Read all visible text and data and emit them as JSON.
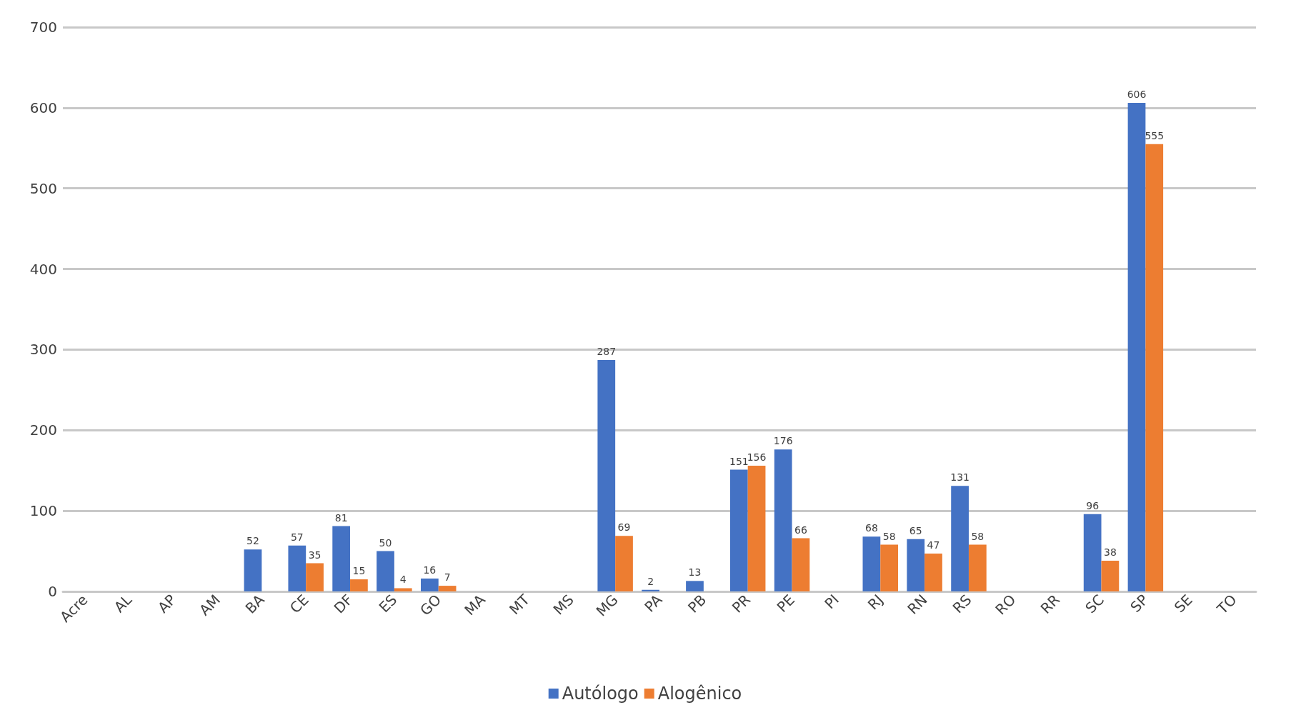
{
  "chart_data": {
    "type": "bar",
    "categories": [
      "Acre",
      "AL",
      "AP",
      "AM",
      "BA",
      "CE",
      "DF",
      "ES",
      "GO",
      "MA",
      "MT",
      "MS",
      "MG",
      "PA",
      "PB",
      "PR",
      "PE",
      "PI",
      "RJ",
      "RN",
      "RS",
      "RO",
      "RR",
      "SC",
      "SP",
      "SE",
      "TO"
    ],
    "series": [
      {
        "name": "Autólogo",
        "color": "#4472c4",
        "values": [
          null,
          null,
          null,
          null,
          52,
          57,
          81,
          50,
          16,
          null,
          null,
          null,
          287,
          2,
          13,
          151,
          176,
          null,
          68,
          65,
          131,
          null,
          null,
          96,
          606,
          null,
          null
        ]
      },
      {
        "name": "Alogênico",
        "color": "#ed7d31",
        "values": [
          null,
          null,
          null,
          null,
          null,
          35,
          15,
          4,
          7,
          null,
          null,
          null,
          69,
          null,
          null,
          156,
          66,
          null,
          58,
          47,
          58,
          null,
          null,
          38,
          555,
          null,
          null
        ]
      }
    ],
    "ylim": [
      0,
      700
    ],
    "yticks": [
      0,
      100,
      200,
      300,
      400,
      500,
      600,
      700
    ],
    "grid": "y",
    "legend": "bottom",
    "data_labels": true
  }
}
